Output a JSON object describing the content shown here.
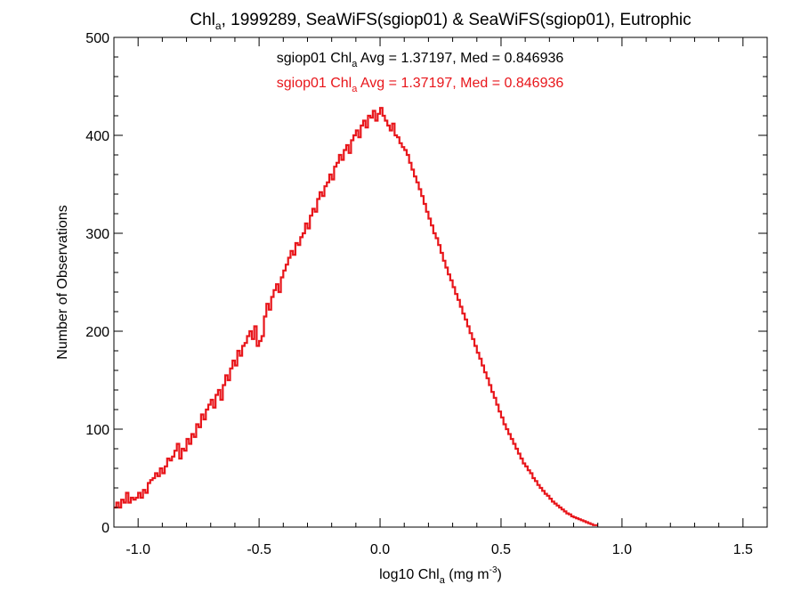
{
  "chart_data": {
    "type": "histogram",
    "title": {
      "prefix": "Chl",
      "sub": "a",
      "suffix": ", 1999289, SeaWiFS(sgiop01) & SeaWiFS(sgiop01), Eutrophic"
    },
    "xlabel": {
      "prefix": "log10 Chl",
      "sub": "a",
      "mid": " (mg m",
      "sup": "-3",
      "end": ")"
    },
    "ylabel": "Number of Observations",
    "xlim": [
      -1.1,
      1.6
    ],
    "ylim": [
      0,
      500
    ],
    "x_ticks": [
      -1.0,
      -0.5,
      0.0,
      0.5,
      1.0,
      1.5
    ],
    "x_tick_labels": [
      "-1.0",
      "-0.5",
      "0.0",
      "0.5",
      "1.0",
      "1.5"
    ],
    "y_ticks": [
      0,
      100,
      200,
      300,
      400,
      500
    ],
    "y_tick_labels": [
      "0",
      "100",
      "200",
      "300",
      "400",
      "500"
    ],
    "annotations": [
      {
        "prefix": "sgiop01 Chl",
        "sub": "a",
        "suffix": " Avg = 1.37197, Med = 0.846936",
        "color": "#000000"
      },
      {
        "prefix": "sgiop01 Chl",
        "sub": "a",
        "suffix": " Avg = 1.37197, Med = 0.846936",
        "color": "#e8161b"
      }
    ],
    "bin_width": 0.01,
    "x_start": -1.1,
    "series": [
      {
        "color": "#e8161b",
        "values": [
          20,
          25,
          20,
          28,
          25,
          35,
          25,
          30,
          28,
          30,
          35,
          30,
          38,
          35,
          45,
          48,
          50,
          55,
          52,
          60,
          55,
          62,
          70,
          68,
          72,
          78,
          85,
          70,
          80,
          78,
          90,
          85,
          95,
          92,
          105,
          102,
          115,
          110,
          120,
          125,
          130,
          122,
          135,
          140,
          130,
          145,
          155,
          150,
          162,
          170,
          165,
          180,
          175,
          185,
          188,
          195,
          200,
          192,
          205,
          185,
          190,
          195,
          215,
          228,
          222,
          235,
          242,
          248,
          240,
          255,
          262,
          268,
          275,
          282,
          278,
          290,
          288,
          296,
          300,
          310,
          305,
          318,
          325,
          322,
          335,
          342,
          338,
          348,
          352,
          360,
          355,
          368,
          372,
          380,
          375,
          385,
          390,
          382,
          395,
          400,
          405,
          398,
          410,
          415,
          408,
          420,
          418,
          425,
          415,
          422,
          428,
          420,
          415,
          410,
          405,
          412,
          400,
          398,
          392,
          388,
          385,
          380,
          372,
          365,
          358,
          352,
          345,
          338,
          330,
          322,
          315,
          308,
          300,
          295,
          288,
          280,
          272,
          265,
          258,
          252,
          245,
          238,
          232,
          225,
          218,
          212,
          205,
          198,
          192,
          185,
          178,
          172,
          165,
          158,
          152,
          145,
          138,
          132,
          125,
          118,
          112,
          105,
          100,
          95,
          90,
          85,
          80,
          75,
          70,
          65,
          62,
          58,
          55,
          50,
          47,
          43,
          40,
          37,
          34,
          32,
          29,
          26,
          24,
          22,
          20,
          18,
          16,
          14,
          13,
          11,
          10,
          9,
          8,
          7,
          6,
          5,
          4,
          3,
          2,
          2
        ]
      }
    ]
  }
}
